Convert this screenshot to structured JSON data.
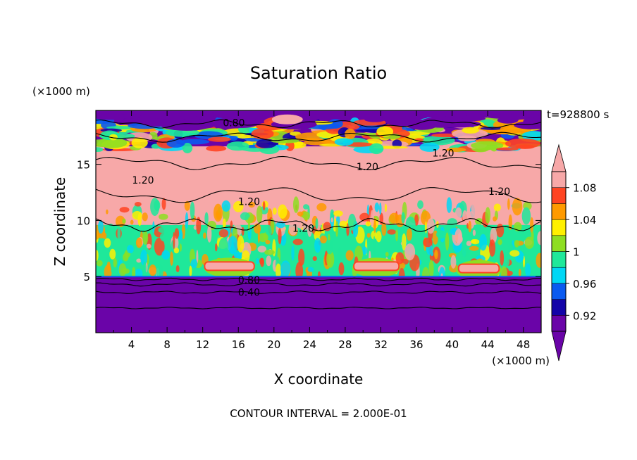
{
  "chart_data": {
    "type": "heatmap",
    "title": "Saturation Ratio",
    "xlabel": "X coordinate",
    "ylabel": "Z coordinate",
    "x_unit": "(×1000 m)",
    "y_unit": "(×1000 m)",
    "time_label": "t=928800 s",
    "footer": "CONTOUR INTERVAL = 2.000E-01",
    "xlim": [
      0,
      50
    ],
    "ylim": [
      0,
      19.8
    ],
    "x_ticks": [
      4,
      8,
      12,
      16,
      20,
      24,
      28,
      32,
      36,
      40,
      44,
      48
    ],
    "y_ticks": [
      5,
      10,
      15
    ],
    "contour_labels": [
      {
        "text": "0.80",
        "x": 15.5,
        "z": 18.7
      },
      {
        "text": "1.20",
        "x": 30.5,
        "z": 14.8
      },
      {
        "text": "1.20",
        "x": 39.0,
        "z": 16.0
      },
      {
        "text": "1.20",
        "x": 5.3,
        "z": 13.6
      },
      {
        "text": "1.20",
        "x": 17.2,
        "z": 11.7
      },
      {
        "text": "1.20",
        "x": 45.3,
        "z": 12.6
      },
      {
        "text": "1.20",
        "x": 23.3,
        "z": 9.3
      },
      {
        "text": "0.80",
        "x": 17.2,
        "z": 4.7
      },
      {
        "text": "0.40",
        "x": 17.2,
        "z": 3.6
      }
    ],
    "colorbar": {
      "levels": [
        0.92,
        0.94,
        0.96,
        0.98,
        1.0,
        1.02,
        1.04,
        1.06,
        1.08,
        1.1
      ],
      "tick_labels": [
        "1.08",
        "1.04",
        "1",
        "0.96",
        "0.92"
      ],
      "colors": [
        "#6a04a8",
        "#1404a8",
        "#0a5af0",
        "#00d7f5",
        "#1fe89a",
        "#8ede22",
        "#fff000",
        "#ff9a00",
        "#ff4422",
        "#f7a8a8"
      ],
      "extend": "both"
    },
    "field_layers": {
      "upper_dry_top": {
        "z_range": [
          18.5,
          19.8
        ],
        "value": "<0.92"
      },
      "upper_moist_band": {
        "z_range": [
          16.5,
          18.5
        ],
        "value": "0.92-1.10 mixed"
      },
      "supersaturated_layer": {
        "z_range": [
          9.5,
          16.5
        ],
        "value": ">1.10"
      },
      "cloud_mixing_layer": {
        "z_range": [
          5.0,
          9.5
        ],
        "value": "0.98-1.10 mixed"
      },
      "lower_dry_layer": {
        "z_range": [
          0,
          5.0
        ],
        "value": "<0.92"
      }
    }
  }
}
